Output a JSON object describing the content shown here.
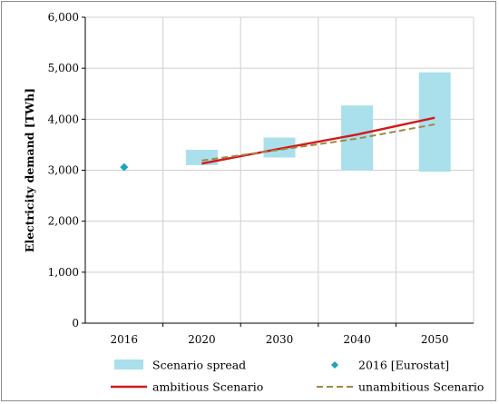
{
  "chart_data": {
    "type": "bar",
    "ylabel": "Electricity demand [TWh]",
    "xlabel": "",
    "ylim": [
      0,
      6000
    ],
    "yticks": [
      0,
      1000,
      2000,
      3000,
      4000,
      5000,
      6000
    ],
    "ytick_labels": [
      "0",
      "1,000",
      "2,000",
      "3,000",
      "4,000",
      "5,000",
      "6,000"
    ],
    "categories": [
      "2016",
      "2020",
      "2030",
      "2040",
      "2050"
    ],
    "grid": true,
    "legend_position": "bottom",
    "series": [
      {
        "name": "Scenario spread",
        "kind": "floating-range-bar",
        "color": "#a9e0ec",
        "ranges": [
          null,
          [
            3100,
            3400
          ],
          [
            3250,
            3640
          ],
          [
            3000,
            4270
          ],
          [
            2970,
            4920
          ]
        ]
      },
      {
        "name": "2016 [Eurostat]",
        "kind": "marker",
        "color": "#1fa3c0",
        "values": [
          3060,
          null,
          null,
          null,
          null
        ]
      },
      {
        "name": "ambitious Scenario",
        "kind": "line",
        "color": "#d01a1a",
        "values": [
          null,
          3130,
          3420,
          3700,
          4030
        ]
      },
      {
        "name": "unambitious Scenario",
        "kind": "dashed-line",
        "color": "#a08845",
        "values": [
          null,
          3190,
          3400,
          3620,
          3900
        ]
      }
    ]
  }
}
